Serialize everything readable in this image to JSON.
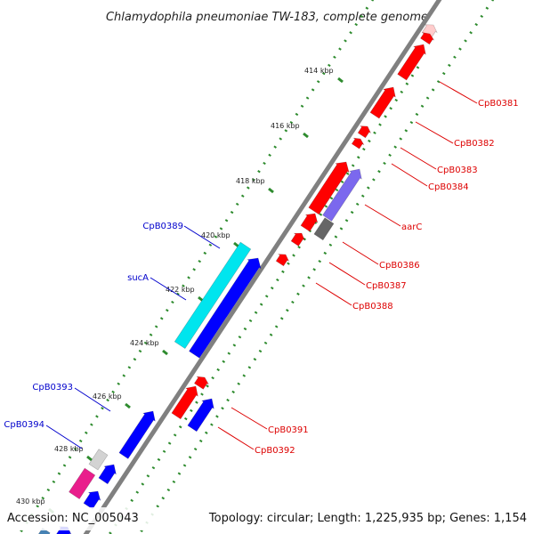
{
  "title": "Chlamydophila pneumoniae TW-183, complete genome",
  "footer": {
    "accession": "Accession: NC_005043",
    "summary": "Topology: circular; Length: 1,225,935 bp; Genes: 1,154"
  },
  "colors": {
    "backbone": "#808080",
    "dots": "#2e8b2e",
    "label_plus": "#dd0000",
    "label_minus": "#0000cc"
  },
  "ticks": [
    "414 kbp",
    "416 kbp",
    "418 kbp",
    "420 kbp",
    "422 kbp",
    "424 kbp",
    "426 kbp",
    "428 kbp",
    "430 kbp"
  ],
  "genes_right": [
    {
      "label": "CpB0381",
      "color": "#ff0000"
    },
    {
      "label": "CpB0382",
      "color": "#ff0000"
    },
    {
      "label": "CpB0383",
      "color": "#ff0000"
    },
    {
      "label": "CpB0384",
      "color": "#ff0000"
    },
    {
      "label": "aarC",
      "color": "#7b68ee"
    },
    {
      "label": "CpB0386",
      "color": "#ff0000"
    },
    {
      "label": "CpB0387",
      "color": "#ff0000"
    },
    {
      "label": "CpB0388",
      "color": "#ff0000"
    },
    {
      "label": "CpB0391",
      "color": "#ff0000"
    },
    {
      "label": "CpB0392",
      "color": "#0000ff"
    }
  ],
  "genes_left": [
    {
      "label": "CpB0389",
      "color": "#00e5ee"
    },
    {
      "label": "sucA",
      "color": "#0000ff"
    },
    {
      "label": "CpB0393",
      "color": "#0000ff"
    },
    {
      "label": "CpB0394",
      "color": "#d3d3d3"
    }
  ]
}
